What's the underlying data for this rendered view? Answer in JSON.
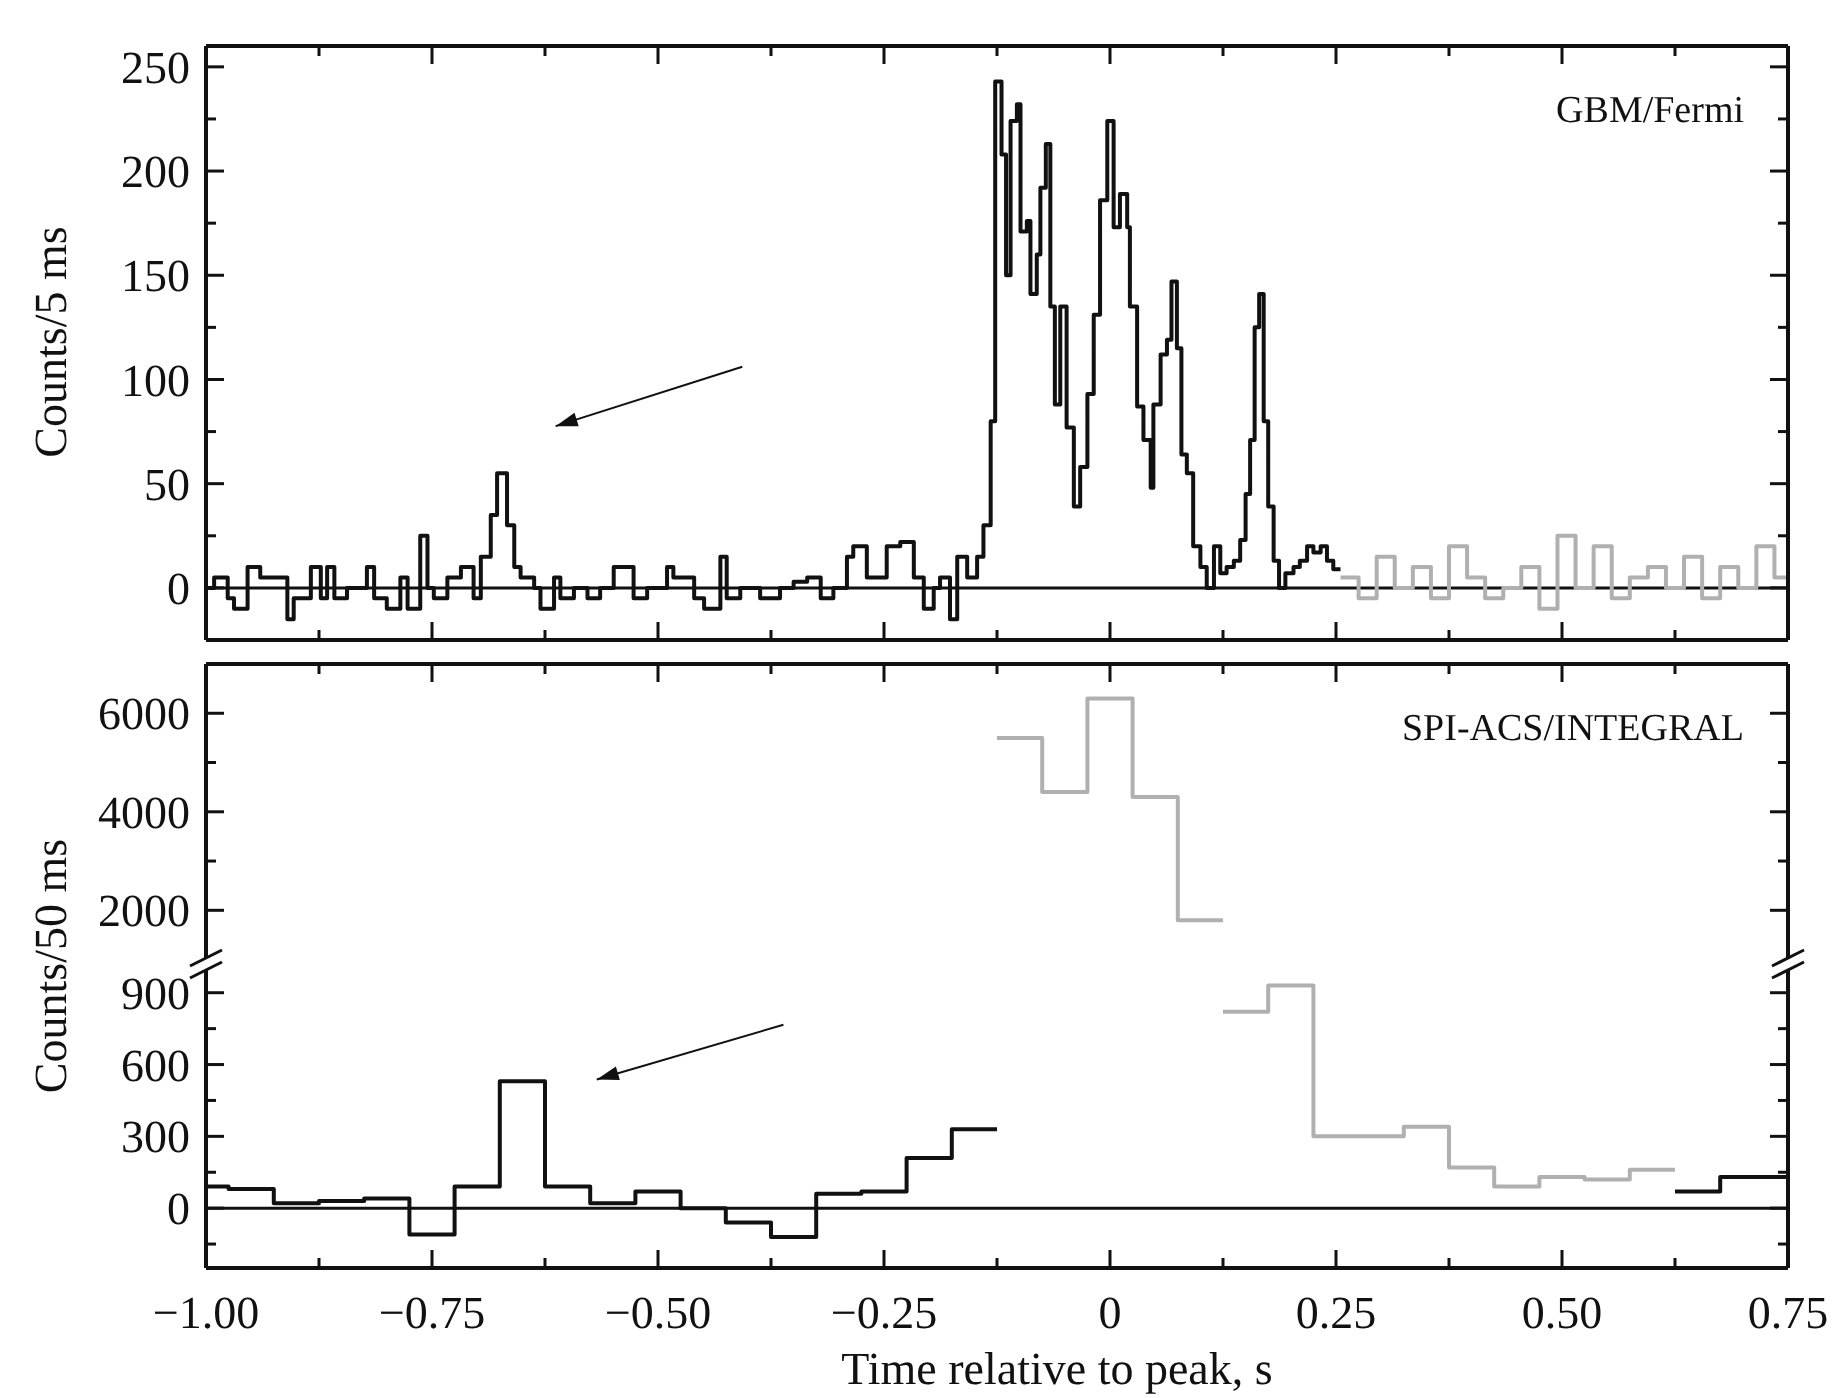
{
  "chart_data": [
    {
      "type": "step",
      "ylabel": "Counts/5 ms",
      "annotations": [
        "GBM/Fermi"
      ],
      "xlim": [
        -1,
        0.75
      ],
      "ylim": [
        -25,
        260
      ],
      "xticks": [
        -1,
        {
          "value": -0.875,
          "label": null
        },
        -0.75,
        {
          "value": -0.625,
          "label": null
        },
        -0.5,
        {
          "value": -0.375,
          "label": null
        },
        -0.25,
        {
          "value": -0.125,
          "label": null
        },
        0,
        {
          "value": 0.125,
          "label": null
        },
        0.25,
        {
          "value": 0.375,
          "label": null
        },
        0.5,
        {
          "value": 0.625,
          "label": null
        },
        0.75
      ],
      "yticks": [
        0,
        {
          "value": 25,
          "label": null
        },
        50,
        {
          "value": 75,
          "label": null
        },
        100,
        {
          "value": 125,
          "label": null
        },
        150,
        {
          "value": 175,
          "label": null
        },
        200,
        {
          "value": 225,
          "label": null
        },
        250
      ],
      "tick_labels": "y",
      "ref_lines": [
        {
          "axis": "y",
          "value": 0
        }
      ],
      "series": [
        {
          "color": "#111111",
          "x": [
            -1,
            -0.991,
            -0.976,
            -0.969,
            -0.954,
            -0.94,
            -0.91,
            -0.903,
            -0.884,
            -0.873,
            -0.866,
            -0.858,
            -0.844,
            -0.822,
            -0.814,
            -0.8,
            -0.785,
            -0.777,
            -0.763,
            -0.755,
            -0.748,
            -0.733,
            -0.718,
            -0.704,
            -0.696,
            -0.685,
            -0.678,
            -0.667,
            -0.659,
            -0.652,
            -0.637,
            -0.63,
            -0.615,
            -0.608,
            -0.593,
            -0.578,
            -0.564,
            -0.549,
            -0.527,
            -0.512,
            -0.49,
            -0.483,
            -0.46,
            -0.449,
            -0.431,
            -0.424,
            -0.409,
            -0.387,
            -0.365,
            -0.35,
            -0.335,
            -0.32,
            -0.306,
            -0.291,
            -0.284,
            -0.269,
            -0.247,
            -0.232,
            -0.217,
            -0.206,
            -0.195,
            -0.188,
            -0.177,
            -0.169,
            -0.158,
            -0.147,
            -0.14,
            -0.132,
            -0.127,
            -0.12,
            -0.115,
            -0.11,
            -0.103,
            -0.099,
            -0.092,
            -0.088,
            -0.081,
            -0.077,
            -0.071,
            -0.066,
            -0.061,
            -0.055,
            -0.048,
            -0.04,
            -0.033,
            -0.025,
            -0.018,
            -0.011,
            -0.003,
            0.004,
            0.011,
            0.019,
            0.022,
            0.03,
            0.037,
            0.045,
            0.048,
            0.056,
            0.063,
            0.068,
            0.074,
            0.079,
            0.085,
            0.092,
            0.1,
            0.107,
            0.115,
            0.122,
            0.129,
            0.137,
            0.144,
            0.15,
            0.155,
            0.16,
            0.165,
            0.17,
            0.175,
            0.181,
            0.187,
            0.194,
            0.203,
            0.21,
            0.218,
            0.225,
            0.233,
            0.24,
            0.247,
            0.255
          ],
          "values": [
            0,
            5,
            -5,
            -10,
            10,
            5,
            -15,
            -5,
            10,
            -5,
            10,
            -5,
            0,
            10,
            -5,
            -10,
            5,
            -10,
            25,
            0,
            -5,
            5,
            10,
            -5,
            15,
            35,
            55,
            30,
            10,
            5,
            0,
            -10,
            5,
            -5,
            0,
            -5,
            0,
            10,
            -5,
            0,
            10,
            5,
            -5,
            -10,
            15,
            -5,
            0,
            -5,
            0,
            3,
            5,
            -5,
            0,
            15,
            20,
            5,
            20,
            22,
            5,
            -10,
            0,
            5,
            -15,
            15,
            5,
            15,
            30,
            80,
            243,
            208,
            150,
            224,
            232,
            171,
            176,
            141,
            160,
            192,
            213,
            135,
            88,
            135,
            77,
            39,
            58,
            93,
            131,
            186,
            224,
            173,
            189,
            173,
            135,
            87,
            71,
            48,
            88,
            112,
            119,
            147,
            115,
            64,
            55,
            20,
            10,
            0,
            20,
            7,
            10,
            13,
            23,
            45,
            71,
            125,
            141,
            80,
            39,
            13,
            0,
            7,
            10,
            13,
            20,
            17,
            20,
            13,
            9,
            9
          ]
        },
        {
          "color": "#b0b0b0",
          "x": [
            0.255,
            0.275,
            0.295,
            0.315,
            0.335,
            0.355,
            0.375,
            0.395,
            0.415,
            0.435,
            0.455,
            0.475,
            0.495,
            0.515,
            0.535,
            0.555,
            0.575,
            0.595,
            0.615,
            0.635,
            0.655,
            0.675,
            0.695,
            0.715,
            0.735,
            0.75
          ],
          "values": [
            5,
            -5,
            15,
            0,
            10,
            -5,
            20,
            5,
            -5,
            0,
            10,
            -10,
            25,
            0,
            20,
            -5,
            5,
            10,
            0,
            15,
            -5,
            10,
            0,
            20,
            5,
            5
          ]
        }
      ]
    },
    {
      "type": "step",
      "annotations": [
        "SPI-ACS/INTEGRAL"
      ],
      "xlim": [
        -1,
        0.75
      ],
      "ylim": [
        910,
        7000
      ],
      "xticks": [
        -1,
        {
          "value": -0.875,
          "label": null
        },
        -0.75,
        {
          "value": -0.625,
          "label": null
        },
        -0.5,
        {
          "value": -0.375,
          "label": null
        },
        -0.25,
        {
          "value": -0.125,
          "label": null
        },
        0,
        {
          "value": 0.125,
          "label": null
        },
        0.25,
        {
          "value": 0.375,
          "label": null
        },
        0.5,
        {
          "value": 0.625,
          "label": null
        },
        0.75
      ],
      "yticks": [
        2000,
        {
          "value": 3000,
          "label": null
        },
        4000,
        {
          "value": 5000,
          "label": null
        },
        6000
      ],
      "tick_labels": "y",
      "series": [
        {
          "color": "#b0b0b0",
          "x": [
            -0.125,
            -0.075,
            -0.025,
            0.025,
            0.075,
            0.125
          ],
          "values": [
            5500,
            4400,
            6300,
            4300,
            1800,
            1800
          ]
        }
      ]
    },
    {
      "type": "step",
      "ylabel": "Counts/50 ms",
      "xlabel": "Time relative to peak, s",
      "xlim": [
        -1,
        0.75
      ],
      "ylim": [
        -250,
        1020
      ],
      "xticks": [
        {
          "value": -1,
          "label": "−1.00"
        },
        {
          "value": -0.875,
          "label": null
        },
        {
          "value": -0.75,
          "label": "−0.75"
        },
        {
          "value": -0.625,
          "label": null
        },
        {
          "value": -0.5,
          "label": "−0.50"
        },
        {
          "value": -0.375,
          "label": null
        },
        {
          "value": -0.25,
          "label": "−0.25"
        },
        {
          "value": -0.125,
          "label": null
        },
        0,
        {
          "value": 0.125,
          "label": null
        },
        0.25,
        {
          "value": 0.375,
          "label": null
        },
        {
          "value": 0.5,
          "label": "0.50"
        },
        {
          "value": 0.625,
          "label": null
        },
        0.75
      ],
      "yticks": [
        {
          "value": -150,
          "label": null
        },
        0,
        {
          "value": 150,
          "label": null
        },
        300,
        {
          "value": 450,
          "label": null
        },
        600,
        {
          "value": 750,
          "label": null
        },
        900
      ],
      "ref_lines": [
        {
          "axis": "y",
          "value": 0
        }
      ],
      "series": [
        {
          "color": "#111111",
          "x": [
            -1,
            -0.975,
            -0.925,
            -0.875,
            -0.825,
            -0.775,
            -0.725,
            -0.675,
            -0.625,
            -0.575,
            -0.525,
            -0.475,
            -0.425,
            -0.375,
            -0.325,
            -0.275,
            -0.225,
            -0.175,
            -0.125
          ],
          "values": [
            90,
            80,
            20,
            30,
            40,
            -110,
            90,
            530,
            90,
            20,
            70,
            0,
            -60,
            -120,
            60,
            70,
            210,
            330,
            330
          ]
        },
        {
          "color": "#b0b0b0",
          "x": [
            0.125,
            0.175,
            0.225,
            0.275,
            0.325,
            0.375,
            0.425,
            0.475,
            0.525,
            0.575,
            0.625
          ],
          "values": [
            820,
            930,
            300,
            300,
            340,
            170,
            90,
            130,
            120,
            160,
            160
          ]
        },
        {
          "color": "#111111",
          "x": [
            0.625,
            0.675,
            0.75
          ],
          "values": [
            70,
            130,
            130
          ]
        }
      ]
    }
  ]
}
